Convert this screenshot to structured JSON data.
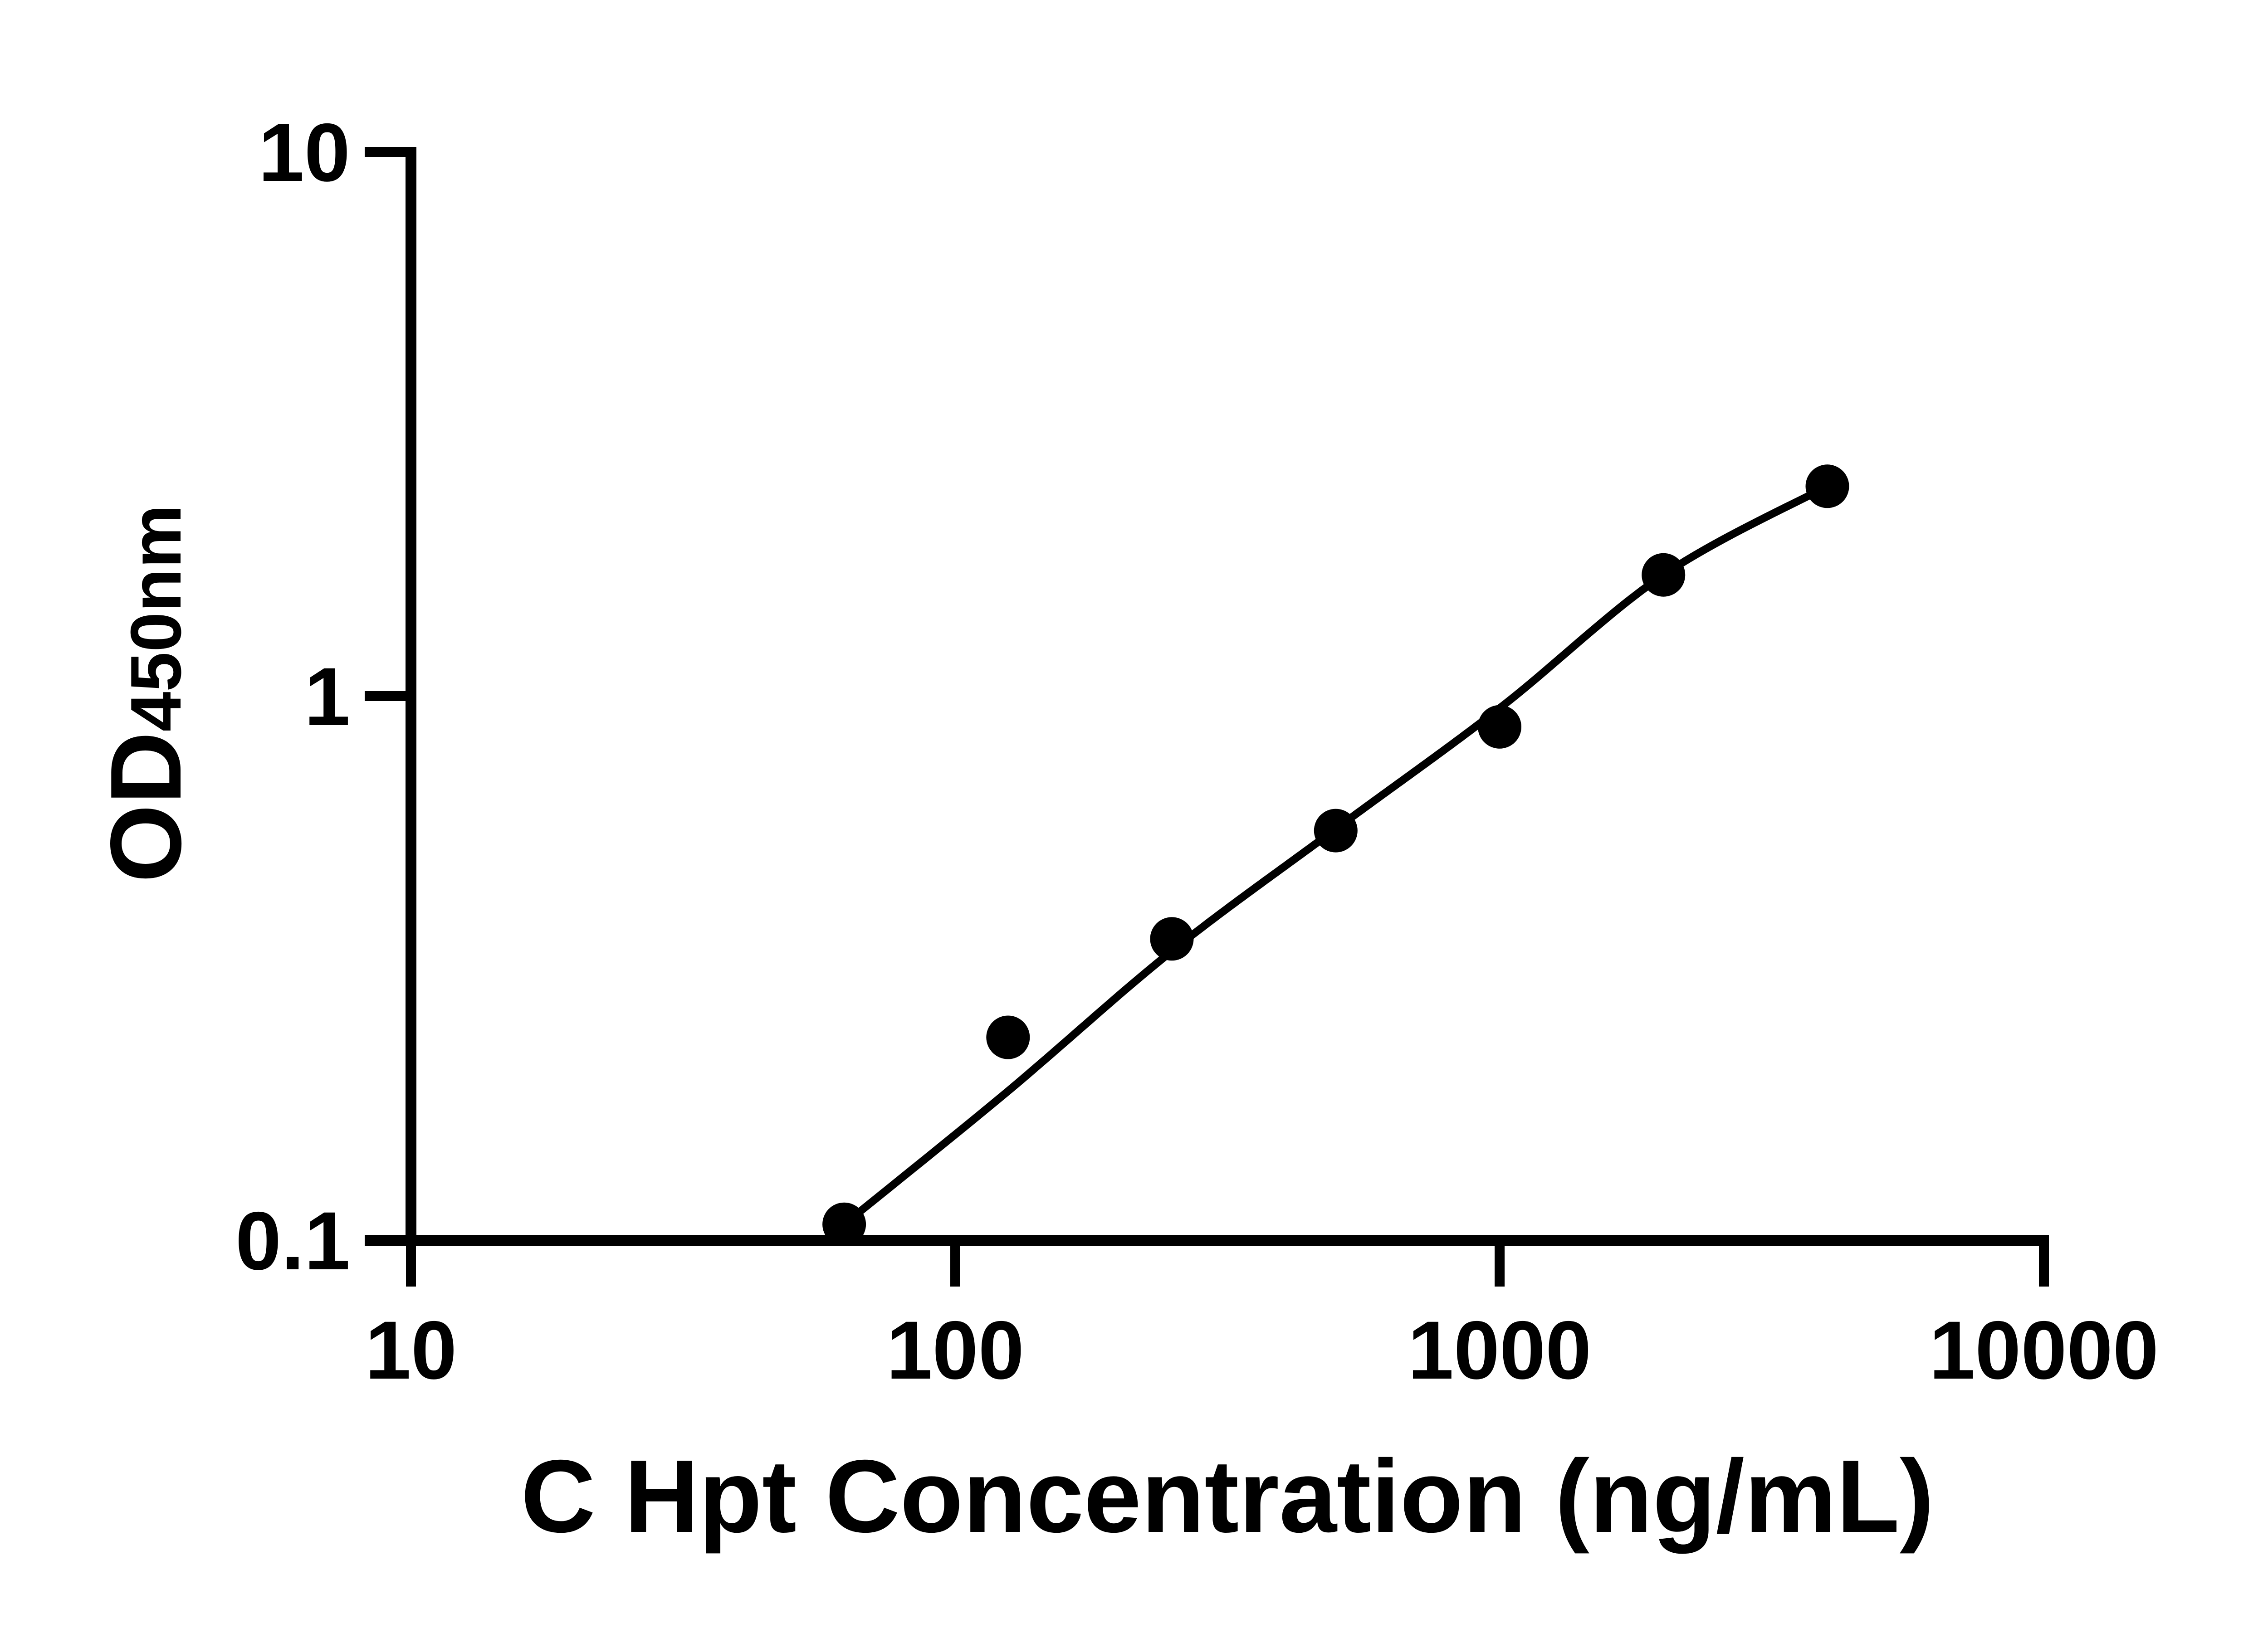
{
  "chart_data": {
    "type": "scatter",
    "title": "",
    "xlabel": "C Hpt Concentration (ng/mL)",
    "ylabel": "OD",
    "ylabel_sub": "450nm",
    "x_scale": "log10",
    "y_scale": "log10",
    "xlim": [
      10,
      10000
    ],
    "ylim": [
      0.1,
      10
    ],
    "x_ticks": [
      10,
      100,
      1000,
      10000
    ],
    "x_tick_labels": [
      "10",
      "100",
      "1000",
      "10000"
    ],
    "y_ticks": [
      0.1,
      1,
      10
    ],
    "y_tick_labels": [
      "0.1",
      "1",
      "10"
    ],
    "grid": false,
    "legend": null,
    "marker_color": "#000000",
    "line_color": "#000000",
    "axis_color": "#000000",
    "background_color": "#ffffff",
    "series": [
      {
        "name": "standard-data-points",
        "type": "scatter",
        "x": [
          62.5,
          125,
          250,
          500,
          1000,
          2000,
          4000
        ],
        "y": [
          0.107,
          0.236,
          0.358,
          0.566,
          0.878,
          1.67,
          2.43
        ]
      },
      {
        "name": "fitted-curve",
        "type": "line",
        "x": [
          62.5,
          125,
          250,
          500,
          1000,
          2000,
          4000
        ],
        "y": [
          0.107,
          0.188,
          0.34,
          0.57,
          0.95,
          1.67,
          2.43
        ]
      }
    ]
  }
}
